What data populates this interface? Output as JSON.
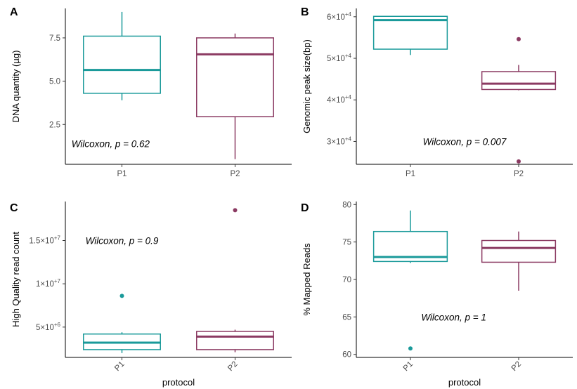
{
  "colors": {
    "P1": "#1a9a9a",
    "P2": "#8b3a62"
  },
  "chart_data": [
    {
      "panel": "A",
      "type": "box",
      "categories": [
        "P1",
        "P2"
      ],
      "ylabel": "DNA quantity (µg)",
      "xlabel": "",
      "ylim": [
        0.2,
        9.2
      ],
      "yticks": [
        2.5,
        5.0,
        7.5
      ],
      "ytick_labels": [
        "2.5",
        "5.0",
        "7.5"
      ],
      "xtick_rotate": false,
      "annotation": "Wilcoxon, p = 0.62",
      "annotation_pos": [
        0.9,
        1.4
      ],
      "boxes": [
        {
          "name": "P1",
          "whisker_low": 3.9,
          "q1": 4.3,
          "median": 5.65,
          "q3": 7.6,
          "whisker_high": 9.0,
          "outliers": []
        },
        {
          "name": "P2",
          "whisker_low": 0.5,
          "q1": 2.95,
          "median": 6.55,
          "q3": 7.5,
          "whisker_high": 7.75,
          "outliers": []
        }
      ]
    },
    {
      "panel": "B",
      "type": "box",
      "categories": [
        "P1",
        "P2"
      ],
      "ylabel": "Genomic peak size(bp)",
      "xlabel": "",
      "ylim": [
        24500,
        62000
      ],
      "yticks": [
        30000,
        40000,
        50000,
        60000
      ],
      "ytick_labels": [
        {
          "base": "3×10",
          "exp": "+4"
        },
        {
          "base": "4×10",
          "exp": "+4"
        },
        {
          "base": "5×10",
          "exp": "+4"
        },
        {
          "base": "6×10",
          "exp": "+4"
        }
      ],
      "xtick_rotate": false,
      "annotation": "Wilcoxon, p = 0.007",
      "annotation_pos": [
        1.5,
        30000
      ],
      "boxes": [
        {
          "name": "P1",
          "whisker_low": 50800,
          "q1": 52200,
          "median": 59200,
          "q3": 60100,
          "whisker_high": 60100,
          "outliers": []
        },
        {
          "name": "P2",
          "whisker_low": 42300,
          "q1": 42500,
          "median": 43900,
          "q3": 46800,
          "whisker_high": 48400,
          "outliers": [
            54600,
            25200
          ]
        }
      ]
    },
    {
      "panel": "C",
      "type": "box",
      "categories": [
        "P1",
        "P2"
      ],
      "ylabel": "High Quality read count",
      "xlabel": "protocol",
      "ylim": [
        1500000,
        19500000
      ],
      "yticks": [
        5000000,
        10000000,
        15000000
      ],
      "ytick_labels": [
        {
          "base": "5×10",
          "exp": "+6"
        },
        {
          "base": "1×10",
          "exp": "+7"
        },
        {
          "base": "1.5×10",
          "exp": "+7"
        }
      ],
      "xtick_rotate": true,
      "annotation": "Wilcoxon, p = 0.9",
      "annotation_pos": [
        1.0,
        15000000
      ],
      "boxes": [
        {
          "name": "P1",
          "whisker_low": 2000000,
          "q1": 2400000,
          "median": 3200000,
          "q3": 4200000,
          "whisker_high": 4400000,
          "outliers": [
            8600000
          ]
        },
        {
          "name": "P2",
          "whisker_low": 2100000,
          "q1": 2400000,
          "median": 3900000,
          "q3": 4500000,
          "whisker_high": 4700000,
          "outliers": [
            18500000
          ]
        }
      ]
    },
    {
      "panel": "D",
      "type": "box",
      "categories": [
        "P1",
        "P2"
      ],
      "ylabel": "% Mapped Reads",
      "xlabel": "protocol",
      "ylim": [
        59.6,
        80.4
      ],
      "yticks": [
        60,
        65,
        70,
        75,
        80
      ],
      "ytick_labels": [
        "60",
        "65",
        "70",
        "75",
        "80"
      ],
      "xtick_rotate": true,
      "annotation": "Wilcoxon, p = 1",
      "annotation_pos": [
        1.4,
        65
      ],
      "boxes": [
        {
          "name": "P1",
          "whisker_low": 72.2,
          "q1": 72.4,
          "median": 73.0,
          "q3": 76.4,
          "whisker_high": 79.2,
          "outliers": [
            60.8
          ]
        },
        {
          "name": "P2",
          "whisker_low": 68.5,
          "q1": 72.3,
          "median": 74.2,
          "q3": 75.2,
          "whisker_high": 76.4,
          "outliers": []
        }
      ]
    }
  ]
}
